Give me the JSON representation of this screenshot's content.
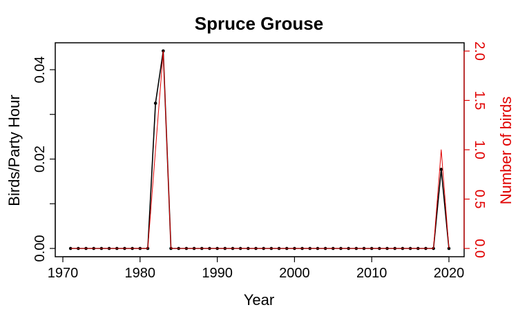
{
  "chart_data": {
    "type": "line",
    "title": "Spruce Grouse",
    "xlabel": "Year",
    "ylabel": "Birds/Party Hour",
    "ylabel_right": "Number of birds",
    "xlim": [
      1970,
      2020
    ],
    "ylim": [
      0,
      0.044
    ],
    "ylim_right": [
      0,
      2.0
    ],
    "x_ticks": [
      1970,
      1980,
      1990,
      2000,
      2010,
      2020
    ],
    "y_ticks": [
      "0.00",
      "0.02",
      "0.04"
    ],
    "y_ticks_values": [
      0,
      0.02,
      0.04
    ],
    "y_ticks_right": [
      "0.0",
      "0.5",
      "1.0",
      "1.5",
      "2.0"
    ],
    "y_ticks_right_values": [
      0,
      0.5,
      1.0,
      1.5,
      2.0
    ],
    "grid": false,
    "x": [
      1971,
      1972,
      1973,
      1974,
      1975,
      1976,
      1977,
      1978,
      1979,
      1980,
      1981,
      1982,
      1983,
      1984,
      1985,
      1986,
      1987,
      1988,
      1989,
      1990,
      1991,
      1992,
      1993,
      1994,
      1995,
      1996,
      1997,
      1998,
      1999,
      2000,
      2001,
      2002,
      2003,
      2004,
      2005,
      2006,
      2007,
      2008,
      2009,
      2010,
      2011,
      2012,
      2013,
      2014,
      2015,
      2016,
      2017,
      2018,
      2019,
      2020
    ],
    "series": [
      {
        "axis": "left",
        "color": "#000000",
        "values": [
          0,
          0,
          0,
          0,
          0,
          0,
          0,
          0,
          0,
          0,
          0,
          0.0325,
          0.0442,
          0,
          0,
          0,
          0,
          0,
          0,
          0,
          0,
          0,
          0,
          0,
          0,
          0,
          0,
          0,
          0,
          0,
          0,
          0,
          0,
          0,
          0,
          0,
          0,
          0,
          0,
          0,
          0,
          0,
          0,
          0,
          0,
          0,
          0,
          0,
          0.0177,
          0
        ]
      },
      {
        "axis": "right",
        "color": "#e00000",
        "values": [
          0,
          0,
          0,
          0,
          0,
          0,
          0,
          0,
          0,
          0,
          0,
          1,
          2,
          0,
          0,
          0,
          0,
          0,
          0,
          0,
          0,
          0,
          0,
          0,
          0,
          0,
          0,
          0,
          0,
          0,
          0,
          0,
          0,
          0,
          0,
          0,
          0,
          0,
          0,
          0,
          0,
          0,
          0,
          0,
          0,
          0,
          0,
          0,
          1,
          0
        ]
      }
    ]
  }
}
